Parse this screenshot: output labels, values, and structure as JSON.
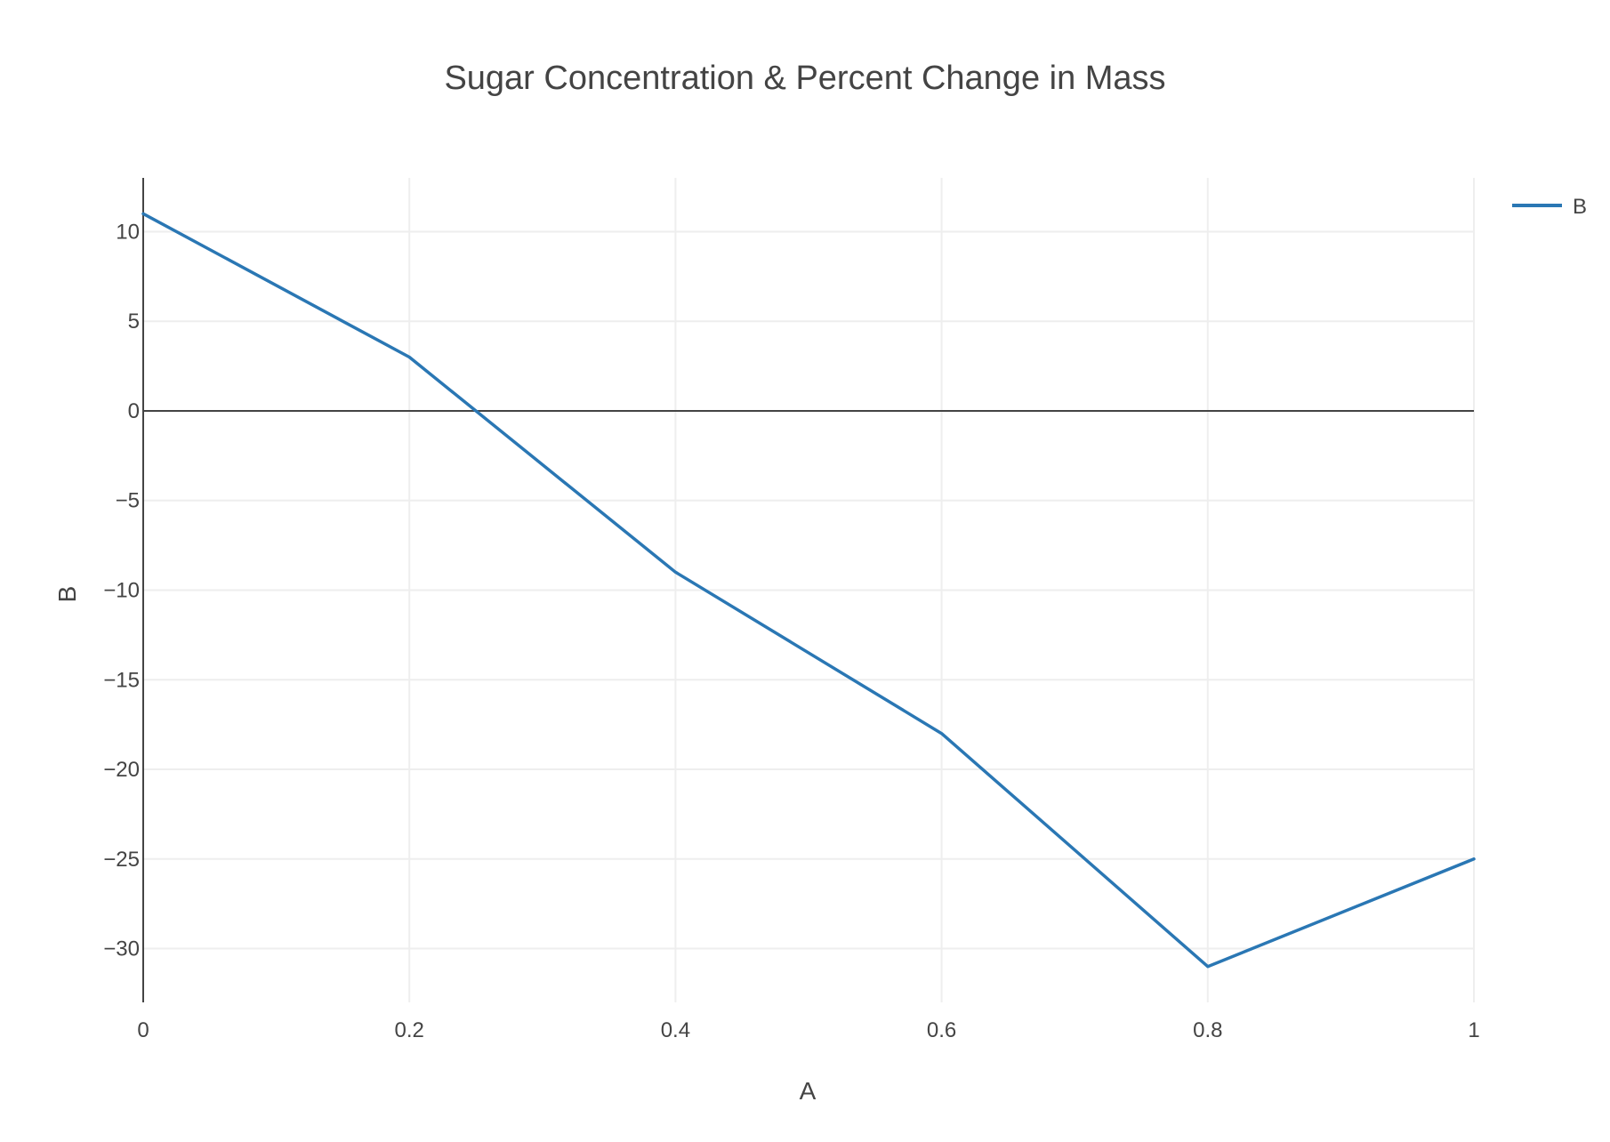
{
  "chart_data": {
    "type": "line",
    "title": "Sugar Concentration & Percent Change in Mass",
    "xlabel": "A",
    "ylabel": "B",
    "xlim": [
      0,
      1
    ],
    "ylim": [
      -33,
      13
    ],
    "x_ticks": [
      0,
      0.2,
      0.4,
      0.6,
      0.8,
      1
    ],
    "x_tick_labels": [
      "0",
      "0.2",
      "0.4",
      "0.6",
      "0.8",
      "1"
    ],
    "y_ticks": [
      10,
      5,
      0,
      -5,
      -10,
      -15,
      -20,
      -25,
      -30
    ],
    "y_tick_labels": [
      "10",
      "5",
      "0",
      "−5",
      "−10",
      "−15",
      "−20",
      "−25",
      "−30"
    ],
    "grid": true,
    "zero_line": true,
    "legend_position": "top-right",
    "series": [
      {
        "name": "B",
        "color": "#2a77b4",
        "x": [
          0,
          0.2,
          0.4,
          0.6,
          0.8,
          1
        ],
        "y": [
          11,
          3,
          -9,
          -18,
          -31,
          -25
        ]
      }
    ]
  }
}
